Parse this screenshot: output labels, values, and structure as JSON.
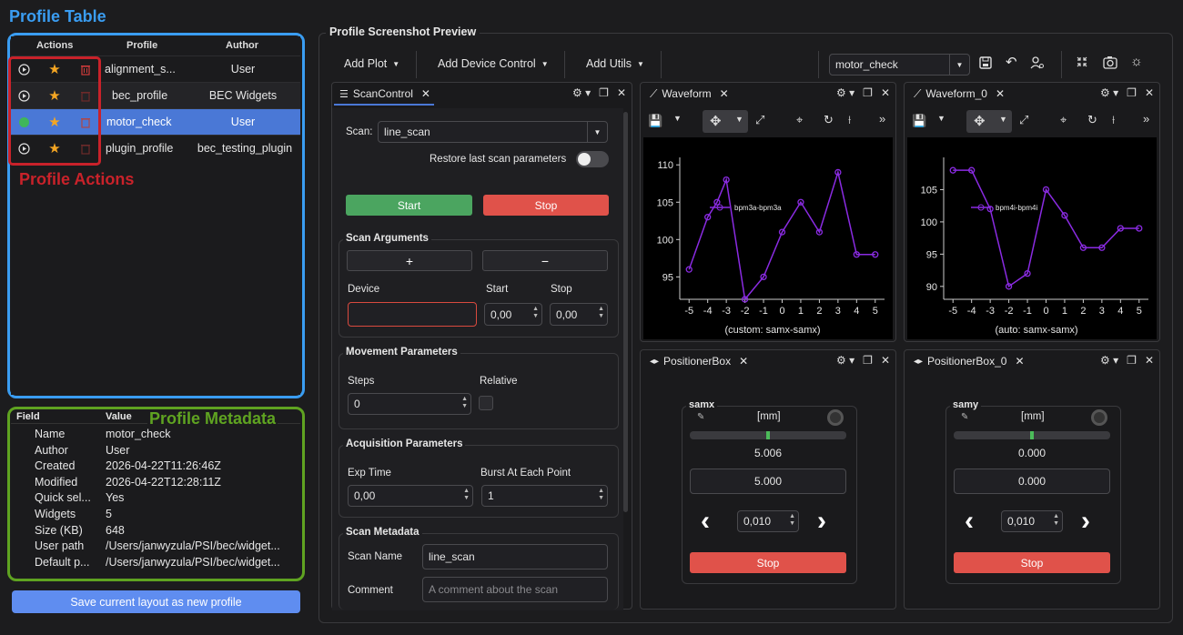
{
  "annotations": {
    "table": "Profile Table",
    "actions": "Profile Actions",
    "metadata": "Profile Metadata"
  },
  "profile_table": {
    "headers": {
      "actions": "Actions",
      "profile": "Profile",
      "author": "Author"
    },
    "rows": [
      {
        "profile": "alignment_s...",
        "author": "User",
        "selected": false
      },
      {
        "profile": "bec_profile",
        "author": "BEC Widgets",
        "selected": false
      },
      {
        "profile": "motor_check",
        "author": "User",
        "selected": true
      },
      {
        "profile": "plugin_profile",
        "author": "bec_testing_plugin",
        "selected": false
      }
    ]
  },
  "metadata": {
    "headers": {
      "field": "Field",
      "value": "Value"
    },
    "rows": [
      {
        "field": "Name",
        "value": "motor_check"
      },
      {
        "field": "Author",
        "value": "User"
      },
      {
        "field": "Created",
        "value": "2026-04-22T11:26:46Z"
      },
      {
        "field": "Modified",
        "value": "2026-04-22T12:28:11Z"
      },
      {
        "field": "Quick sel...",
        "value": "Yes"
      },
      {
        "field": "Widgets",
        "value": "5"
      },
      {
        "field": "Size (KB)",
        "value": "648"
      },
      {
        "field": "User path",
        "value": "/Users/janwyzula/PSI/bec/widget..."
      },
      {
        "field": "Default p...",
        "value": "/Users/janwyzula/PSI/bec/widget..."
      }
    ]
  },
  "save_button": "Save current layout as new profile",
  "preview": {
    "title": "Profile Screenshot Preview",
    "toolbar": {
      "add_plot": "Add Plot",
      "add_device_control": "Add Device Control",
      "add_utils": "Add Utils",
      "profile_select": "motor_check"
    },
    "scan_control": {
      "tab": "ScanControl",
      "scan_label": "Scan:",
      "scan_value": "line_scan",
      "restore_label": "Restore last scan parameters",
      "start": "Start",
      "stop": "Stop",
      "scan_args_title": "Scan Arguments",
      "plus": "+",
      "minus": "−",
      "device_label": "Device",
      "start_label": "Start",
      "stop_label": "Stop",
      "start_value": "0,00",
      "stop_value": "0,00",
      "movement_title": "Movement Parameters",
      "steps_label": "Steps",
      "relative_label": "Relative",
      "steps_value": "0",
      "acq_title": "Acquisition Parameters",
      "exp_time_label": "Exp Time",
      "burst_label": "Burst At Each Point",
      "exp_time_value": "0,00",
      "burst_value": "1",
      "meta_title": "Scan Metadata",
      "scan_name_label": "Scan Name",
      "scan_name_value": "line_scan",
      "comment_label": "Comment",
      "comment_placeholder": "A comment about the scan"
    },
    "waveform1": {
      "tab": "Waveform",
      "legend": "bpm3a-bpm3a",
      "xlabel": "(custom: samx-samx)"
    },
    "waveform2": {
      "tab": "Waveform_0",
      "legend": "bpm4i-bpm4i",
      "xlabel": "(auto: samx-samx)"
    },
    "positioner1": {
      "tab": "PositionerBox",
      "device": "samx",
      "unit": "[mm]",
      "readback": "5.006",
      "setpoint": "5.000",
      "step": "0,010",
      "stop": "Stop",
      "position_fraction": 0.5
    },
    "positioner2": {
      "tab": "PositionerBox_0",
      "device": "samy",
      "unit": "[mm]",
      "readback": "0.000",
      "setpoint": "0.000",
      "step": "0,010",
      "stop": "Stop",
      "position_fraction": 0.5
    }
  },
  "chart_data": [
    {
      "type": "line",
      "x": [
        -5,
        -4,
        -3.5,
        -3,
        -2,
        -1,
        0,
        1,
        2,
        3,
        4,
        5
      ],
      "series": [
        {
          "name": "bpm3a-bpm3a",
          "values": [
            96,
            103,
            105,
            108,
            92,
            95,
            101,
            105,
            101,
            109,
            98,
            98
          ]
        }
      ],
      "xlim": [
        -5.5,
        5.5
      ],
      "ylim": [
        92,
        111
      ],
      "xticks": [
        -5,
        -4,
        -3,
        -2,
        -1,
        0,
        1,
        2,
        3,
        4,
        5
      ],
      "yticks": [
        95,
        100,
        105,
        110
      ],
      "xlabel": "(custom: samx-samx)",
      "color": "#8a2be2"
    },
    {
      "type": "line",
      "x": [
        -5,
        -4,
        -3,
        -2,
        -1,
        0,
        1,
        2,
        3,
        4,
        5
      ],
      "series": [
        {
          "name": "bpm4i-bpm4i",
          "values": [
            108,
            108,
            102,
            90,
            92,
            105,
            101,
            96,
            96,
            99,
            99
          ]
        }
      ],
      "xlim": [
        -5.5,
        5.5
      ],
      "ylim": [
        88,
        110
      ],
      "xticks": [
        -5,
        -4,
        -3,
        -2,
        -1,
        0,
        1,
        2,
        3,
        4,
        5
      ],
      "yticks": [
        90,
        95,
        100,
        105
      ],
      "xlabel": "(auto: samx-samx)",
      "color": "#8a2be2"
    }
  ]
}
